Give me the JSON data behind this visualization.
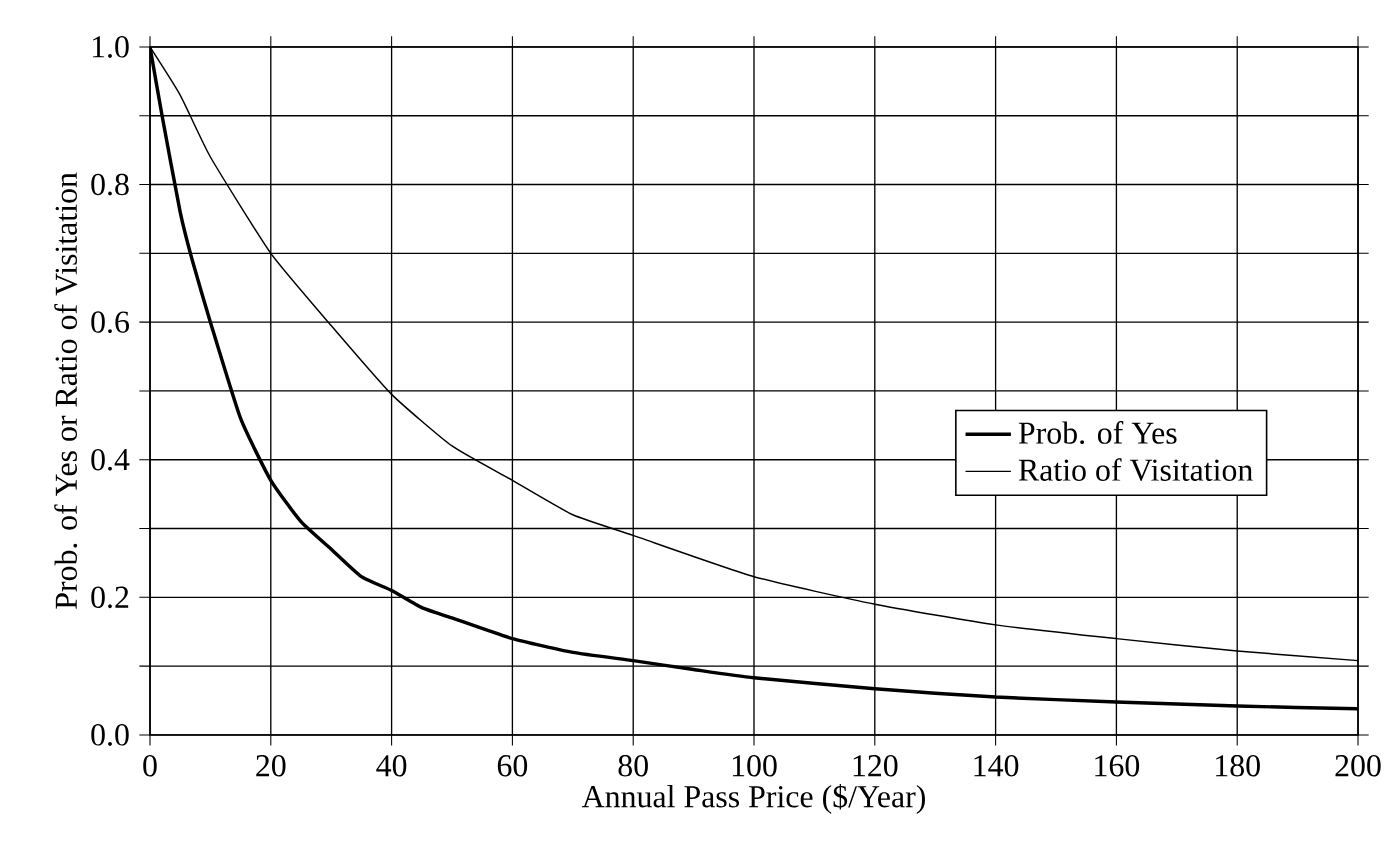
{
  "chart_data": {
    "type": "line",
    "xlabel": "Annual Pass Price ($/Year)",
    "ylabel": "Prob. of Yes or Ratio of Visitation",
    "xlim": [
      0,
      200
    ],
    "ylim": [
      0,
      1
    ],
    "xticks": [
      0,
      20,
      40,
      60,
      80,
      100,
      120,
      140,
      160,
      180,
      200
    ],
    "yticks": [
      {
        "value": 0,
        "label": "0.0"
      },
      {
        "value": 0.1,
        "label": null
      },
      {
        "value": 0.2,
        "label": "0.2"
      },
      {
        "value": 0.3,
        "label": null
      },
      {
        "value": 0.4,
        "label": "0.4"
      },
      {
        "value": 0.5,
        "label": null
      },
      {
        "value": 0.6,
        "label": "0.6"
      },
      {
        "value": 0.7,
        "label": null
      },
      {
        "value": 0.8,
        "label": "0.8"
      },
      {
        "value": 0.9,
        "label": null
      },
      {
        "value": 1,
        "label": "1.0"
      }
    ],
    "grid": true,
    "legend": "right",
    "marker": "none",
    "line_style": "solid",
    "series": [
      {
        "name": "Prob. of Yes",
        "color": "#000000",
        "x": [
          0,
          2,
          5,
          7,
          10,
          15,
          20,
          25,
          30,
          35,
          40,
          45,
          50,
          60,
          70,
          80,
          90,
          100,
          120,
          140,
          160,
          180,
          200
        ],
        "values": [
          1,
          0.9,
          0.76,
          0.69,
          0.6,
          0.46,
          0.37,
          0.31,
          0.27,
          0.23,
          0.21,
          0.185,
          0.17,
          0.14,
          0.12,
          0.108,
          0.095,
          0.083,
          0.067,
          0.055,
          0.048,
          0.042,
          0.038
        ]
      },
      {
        "name": "Ratio of Visitation",
        "color": "#000000",
        "x": [
          0,
          5,
          10,
          20,
          30,
          40,
          50,
          60,
          70,
          80,
          100,
          120,
          140,
          160,
          180,
          200
        ],
        "values": [
          1,
          0.93,
          0.84,
          0.7,
          0.595,
          0.495,
          0.42,
          0.37,
          0.32,
          0.29,
          0.23,
          0.19,
          0.16,
          0.14,
          0.122,
          0.108
        ]
      }
    ]
  }
}
